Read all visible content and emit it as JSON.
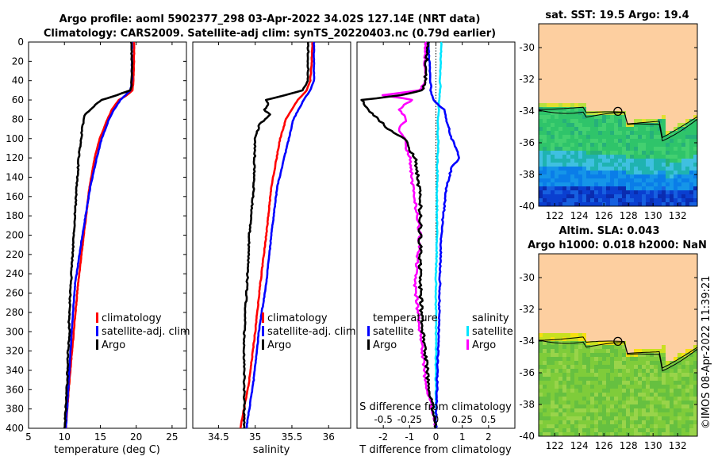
{
  "title": {
    "line1": "Argo profile: aoml 5902377_298 03-Apr-2022 34.02S 127.14E (NRT data)",
    "line2": "Climatology: CARS2009. Satellite-adj clim: synTS_20220403.nc (0.79d earlier)"
  },
  "colors": {
    "clim": "#ff0000",
    "sat": "#0000ff",
    "argo": "#000000",
    "sal_sat": "#00e5ff",
    "sal_argo": "#ff00ff",
    "land": "#fdcfa0"
  },
  "depth_ticks": [
    "0",
    "20",
    "40",
    "60",
    "80",
    "100",
    "120",
    "140",
    "160",
    "180",
    "200",
    "220",
    "240",
    "260",
    "280",
    "300",
    "320",
    "340",
    "360",
    "380",
    "400"
  ],
  "chart_data": [
    {
      "type": "line",
      "name": "temperature",
      "xlabel": "temperature (deg C)",
      "xlim": [
        5,
        27
      ],
      "xticks": [
        "5",
        "10",
        "15",
        "20",
        "25"
      ],
      "ylim": [
        0,
        400
      ],
      "legend": [
        "climatology",
        "satellite-adj. clim",
        "Argo"
      ],
      "series": [
        {
          "name": "climatology",
          "depth": [
            0,
            20,
            40,
            50,
            55,
            60,
            70,
            80,
            100,
            120,
            150,
            200,
            250,
            300,
            350,
            400
          ],
          "values": [
            19.7,
            19.7,
            19.6,
            19.5,
            18.7,
            17.6,
            16.6,
            16.0,
            14.9,
            14.2,
            13.5,
            12.7,
            11.9,
            11.3,
            10.7,
            10.2
          ]
        },
        {
          "name": "satellite-adj. clim",
          "depth": [
            0,
            20,
            40,
            50,
            55,
            60,
            70,
            80,
            100,
            120,
            150,
            200,
            250,
            300,
            350,
            400
          ],
          "values": [
            19.4,
            19.4,
            19.4,
            19.2,
            18.5,
            17.8,
            16.9,
            16.2,
            15.2,
            14.5,
            13.6,
            12.5,
            11.5,
            11.0,
            10.6,
            10.2
          ]
        },
        {
          "name": "Argo",
          "depth": [
            0,
            20,
            40,
            50,
            55,
            60,
            65,
            70,
            75,
            80,
            90,
            100,
            120,
            150,
            200,
            250,
            290,
            300,
            320,
            350,
            360,
            380,
            400
          ],
          "values": [
            19.3,
            19.4,
            19.4,
            19.2,
            17.3,
            15.2,
            14.3,
            13.6,
            12.9,
            12.7,
            12.5,
            12.3,
            12.0,
            11.7,
            11.3,
            10.9,
            10.6,
            10.7,
            10.5,
            10.4,
            10.3,
            10.2,
            10.0
          ]
        }
      ]
    },
    {
      "type": "line",
      "name": "salinity",
      "xlabel": "salinity",
      "xlim": [
        34.15,
        36.3
      ],
      "xticks": [
        "34.5",
        "35",
        "35.5",
        "36"
      ],
      "ylim": [
        0,
        400
      ],
      "legend": [
        "climatology",
        "satellite-adj. clim",
        "Argo"
      ],
      "series": [
        {
          "name": "climatology",
          "depth": [
            0,
            20,
            40,
            50,
            60,
            80,
            100,
            150,
            200,
            250,
            300,
            350,
            400
          ],
          "values": [
            35.78,
            35.77,
            35.75,
            35.7,
            35.58,
            35.42,
            35.34,
            35.22,
            35.15,
            35.07,
            35.0,
            34.92,
            34.8
          ],
          "color": "red"
        },
        {
          "name": "satellite-adj. clim",
          "depth": [
            0,
            20,
            40,
            50,
            60,
            80,
            100,
            150,
            200,
            250,
            300,
            350,
            400
          ],
          "values": [
            35.8,
            35.8,
            35.8,
            35.75,
            35.66,
            35.52,
            35.46,
            35.3,
            35.22,
            35.15,
            35.05,
            34.98,
            34.88
          ]
        },
        {
          "name": "Argo",
          "depth": [
            0,
            20,
            40,
            50,
            55,
            60,
            65,
            70,
            75,
            80,
            85,
            100,
            150,
            200,
            250,
            300,
            350,
            400
          ],
          "values": [
            35.72,
            35.72,
            35.72,
            35.65,
            35.4,
            35.15,
            35.18,
            35.12,
            35.2,
            35.14,
            35.06,
            35.0,
            34.98,
            34.92,
            34.89,
            34.85,
            34.85,
            34.85
          ]
        }
      ]
    },
    {
      "type": "line",
      "name": "difference",
      "xlabel": "T difference from climatology",
      "xlabel_top": "S difference from climatology",
      "xlim": [
        -3,
        3
      ],
      "xticks": [
        "-2",
        "-1",
        "0",
        "1",
        "2"
      ],
      "xticks_s": [
        "-0.5",
        "-0.25",
        "0",
        "0.25",
        "0.5"
      ],
      "ylim": [
        0,
        400
      ],
      "legend_t_title": "temperature",
      "legend_s_title": "salinity",
      "legend_t": [
        "satellite",
        "Argo"
      ],
      "legend_s": [
        "satellite",
        "Argo"
      ],
      "series": [
        {
          "name": "T satellite",
          "depth": [
            0,
            40,
            50,
            60,
            70,
            80,
            100,
            120,
            130,
            150,
            200,
            300,
            400
          ],
          "values": [
            -0.3,
            -0.2,
            -0.2,
            -0.1,
            0.3,
            0.4,
            0.6,
            0.9,
            0.6,
            0.4,
            0.2,
            0.1,
            0.0
          ]
        },
        {
          "name": "T Argo",
          "depth": [
            0,
            40,
            50,
            55,
            60,
            70,
            80,
            90,
            100,
            120,
            140,
            160,
            200,
            250,
            300,
            350,
            400
          ],
          "values": [
            -0.3,
            -0.4,
            -0.5,
            -1.3,
            -2.8,
            -2.6,
            -2.2,
            -1.8,
            -1.2,
            -0.8,
            -0.7,
            -0.6,
            -0.6,
            -0.6,
            -0.5,
            -0.3,
            0.0
          ]
        },
        {
          "name": "S satellite",
          "depth": [
            0,
            40,
            50,
            60,
            80,
            100,
            150,
            200,
            250,
            300,
            350,
            400
          ],
          "values": [
            0.05,
            0.04,
            0.04,
            0.03,
            0.02,
            0.02,
            0.01,
            0.01,
            0.0,
            0.0,
            0.0,
            0.0
          ]
        },
        {
          "name": "S Argo",
          "depth": [
            0,
            40,
            50,
            55,
            60,
            65,
            70,
            80,
            90,
            100,
            120,
            150,
            200,
            250,
            300,
            350,
            400
          ],
          "values": [
            -0.1,
            -0.1,
            -0.15,
            -0.5,
            -0.22,
            -0.3,
            -0.35,
            -0.28,
            -0.35,
            -0.3,
            -0.25,
            -0.22,
            -0.15,
            -0.2,
            -0.15,
            -0.1,
            0.0
          ]
        }
      ]
    },
    {
      "type": "heatmap",
      "name": "sst-map",
      "title": "sat. SST: 19.5 Argo: 19.4",
      "xticks": [
        "122",
        "124",
        "126",
        "128",
        "130",
        "132"
      ],
      "yticks": [
        "-30",
        "-32",
        "-34",
        "-36",
        "-38",
        "-40"
      ],
      "xlim": [
        120.7,
        133.6
      ],
      "ylim": [
        -40,
        -28.5
      ],
      "argo_position": [
        127.14,
        -34.02
      ]
    },
    {
      "type": "heatmap",
      "name": "sla-map",
      "title_line1": "Altim. SLA: 0.043",
      "title_line2": "Argo h1000: 0.018 h2000: NaN",
      "xticks": [
        "122",
        "124",
        "126",
        "128",
        "130",
        "132"
      ],
      "yticks": [
        "-30",
        "-32",
        "-34",
        "-36",
        "-38",
        "-40"
      ],
      "xlim": [
        120.7,
        133.6
      ],
      "ylim": [
        -40,
        -28.5
      ],
      "argo_position": [
        127.14,
        -34.02
      ]
    }
  ],
  "watermark": "©IMOS 08-Apr-2022 11:39:21"
}
